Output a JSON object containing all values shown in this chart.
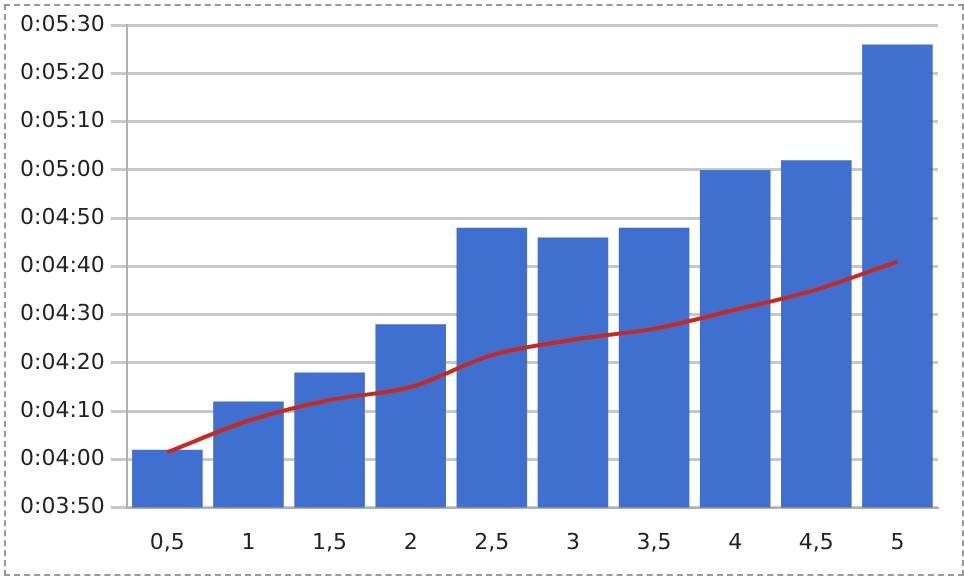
{
  "chart_data": {
    "type": "bar",
    "categories": [
      "0,5",
      "1",
      "1,5",
      "2",
      "2,5",
      "3",
      "3,5",
      "4",
      "4,5",
      "5"
    ],
    "series": [
      {
        "color": "#3f6fcf",
        "values": [
          242,
          252,
          258,
          268,
          288,
          286,
          288,
          300,
          302,
          326
        ]
      },
      {
        "type": "line",
        "color": "#c8281e",
        "values": [
          241.5,
          248,
          252.3,
          255,
          261.6,
          264.8,
          267.1,
          271,
          275.2,
          281
        ]
      }
    ],
    "ylim": [
      230,
      330
    ],
    "yticks": [
      {
        "value": 230,
        "label": "0:03:50"
      },
      {
        "value": 240,
        "label": "0:04:00"
      },
      {
        "value": 250,
        "label": "0:04:10"
      },
      {
        "value": 260,
        "label": "0:04:20"
      },
      {
        "value": 270,
        "label": "0:04:30"
      },
      {
        "value": 280,
        "label": "0:04:40"
      },
      {
        "value": 290,
        "label": "0:04:50"
      },
      {
        "value": 300,
        "label": "0:05:00"
      },
      {
        "value": 310,
        "label": "0:05:10"
      },
      {
        "value": 320,
        "label": "0:05:20"
      },
      {
        "value": 330,
        "label": "0:05:30"
      }
    ],
    "grid": "y",
    "legend": false,
    "marker": "none"
  }
}
